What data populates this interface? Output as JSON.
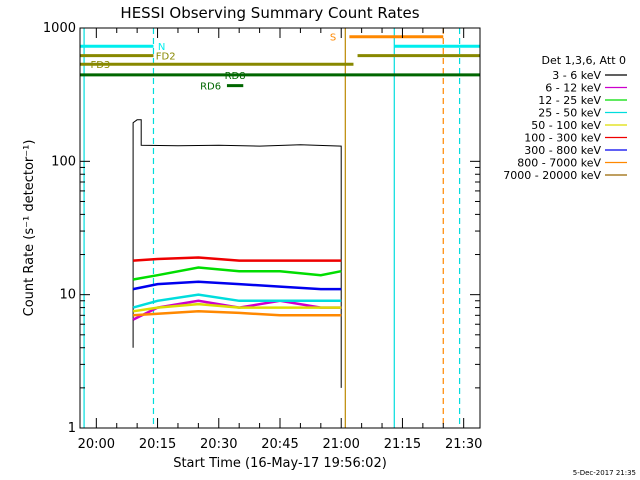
{
  "chart_data": {
    "type": "line",
    "title": "HESSI Observing Summary Count Rates",
    "xlabel": "Start Time (16-May-17 19:56:02)",
    "ylabel": "Count Rate (s⁻¹ detector⁻¹)",
    "ylog": true,
    "xlim": [
      "19:56",
      "21:34"
    ],
    "ylim": [
      1,
      1000
    ],
    "x_ticks": [
      "20:00",
      "20:15",
      "20:30",
      "20:45",
      "21:00",
      "21:15",
      "21:30"
    ],
    "y_ticks": [
      {
        "value": 1,
        "label": "1"
      },
      {
        "value": 10,
        "label": "10"
      },
      {
        "value": 100,
        "label": "100"
      },
      {
        "value": 1000,
        "label": "1000"
      }
    ],
    "legend_title": "Det 1,3,6, Att 0",
    "legend_position": "right",
    "series": [
      {
        "name": "3 - 6 keV",
        "color": "#000000",
        "segments": [
          {
            "x": [
              "20:09",
              "20:09",
              "20:10",
              "20:11",
              "20:11",
              "20:20",
              "20:30",
              "20:40",
              "20:50",
              "21:00",
              "21:00"
            ],
            "y": [
              4,
              195,
              205,
              205,
              132,
              131,
              132,
              130,
              133,
              130,
              2
            ]
          }
        ]
      },
      {
        "name": "6 - 12 keV",
        "color": "#cc00cc",
        "segments": [
          {
            "x": [
              "20:09",
              "20:15",
              "20:25",
              "20:35",
              "20:45",
              "20:55",
              "21:00"
            ],
            "y": [
              6.5,
              8,
              9,
              8,
              9,
              8,
              8
            ]
          }
        ]
      },
      {
        "name": "12 - 25 keV",
        "color": "#00dd00",
        "segments": [
          {
            "x": [
              "20:09",
              "20:15",
              "20:25",
              "20:35",
              "20:45",
              "20:55",
              "21:00"
            ],
            "y": [
              13,
              14,
              16,
              15,
              15,
              14,
              15
            ]
          }
        ]
      },
      {
        "name": "25 - 50 keV",
        "color": "#00dddd",
        "segments": [
          {
            "x": [
              "20:09",
              "20:15",
              "20:25",
              "20:35",
              "20:45",
              "20:55",
              "21:00"
            ],
            "y": [
              8,
              9,
              10,
              9,
              9,
              9,
              9
            ]
          }
        ]
      },
      {
        "name": "50 - 100 keV",
        "color": "#dddd00",
        "segments": [
          {
            "x": [
              "20:09",
              "20:15",
              "20:25",
              "20:35",
              "20:45",
              "20:55",
              "21:00"
            ],
            "y": [
              7.5,
              8,
              8.5,
              8,
              8,
              8,
              8
            ]
          }
        ]
      },
      {
        "name": "100 - 300 keV",
        "color": "#ee0000",
        "segments": [
          {
            "x": [
              "20:09",
              "20:15",
              "20:25",
              "20:35",
              "20:45",
              "20:55",
              "21:00"
            ],
            "y": [
              18,
              18.5,
              19,
              18,
              18,
              18,
              18
            ]
          }
        ]
      },
      {
        "name": "300 - 800 keV",
        "color": "#0000ee",
        "segments": [
          {
            "x": [
              "20:09",
              "20:15",
              "20:25",
              "20:35",
              "20:45",
              "20:55",
              "21:00"
            ],
            "y": [
              11,
              12,
              12.5,
              12,
              11.5,
              11,
              11
            ]
          }
        ]
      },
      {
        "name": "800 - 7000 keV",
        "color": "#ff8800",
        "segments": [
          {
            "x": [
              "20:09",
              "20:15",
              "20:25",
              "20:35",
              "20:45",
              "20:55",
              "21:00"
            ],
            "y": [
              7,
              7.2,
              7.5,
              7.3,
              7,
              7,
              7
            ]
          }
        ]
      },
      {
        "name": "7000 - 20000 keV",
        "color": "#996600",
        "segments": []
      }
    ],
    "vertical_lines": [
      {
        "x": "19:57",
        "color": "#00dddd",
        "dash": false
      },
      {
        "x": "20:14",
        "color": "#00dddd",
        "dash": true
      },
      {
        "x": "21:01",
        "color": "#bb8800",
        "dash": false
      },
      {
        "x": "21:13",
        "color": "#00dddd",
        "dash": false
      },
      {
        "x": "21:25",
        "color": "#ff8800",
        "dash": true
      },
      {
        "x": "21:29",
        "color": "#00dddd",
        "dash": true
      }
    ],
    "flag_bars": [
      {
        "label": "N",
        "color": "#00eeee",
        "x_start": "19:56",
        "x_end": "20:14",
        "y": 730,
        "label_x": "20:16"
      },
      {
        "label": "N",
        "color": "#00eeee",
        "x_start": "21:13",
        "x_end": "21:34",
        "y": 730,
        "label_x": ""
      },
      {
        "label": "S",
        "color": "#ff8800",
        "x_start": "21:02",
        "x_end": "21:25",
        "y": 860,
        "label_x": "20:58"
      },
      {
        "label": "FD2",
        "color": "#888800",
        "x_start": "19:56",
        "x_end": "20:14",
        "y": 620,
        "label_x": "20:17"
      },
      {
        "label": "FD2",
        "color": "#888800",
        "x_start": "21:04",
        "x_end": "21:34",
        "y": 620,
        "label_x": ""
      },
      {
        "label": "FD3",
        "color": "#888800",
        "x_start": "19:56",
        "x_end": "21:03",
        "y": 535,
        "label_x": "20:01"
      },
      {
        "label": "RD8",
        "color": "#006600",
        "x_start": "19:56",
        "x_end": "21:34",
        "y": 445,
        "label_x": "20:34"
      },
      {
        "label": "RD6",
        "color": "#006600",
        "x_start": "20:32",
        "x_end": "20:36",
        "y": 370,
        "label_x": "20:28"
      }
    ],
    "footer_date": "5-Dec-2017 21:35"
  }
}
